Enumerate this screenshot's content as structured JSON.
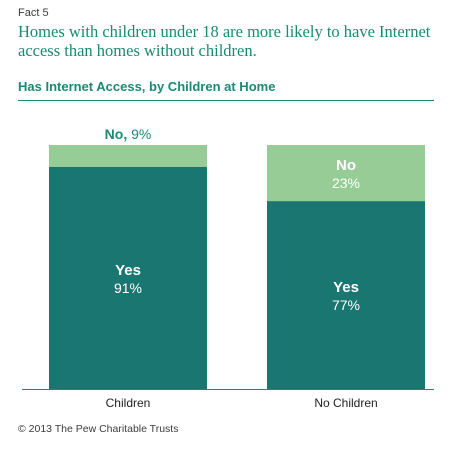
{
  "header": {
    "fact_label": "Fact 5",
    "headline": "Homes with children under 18 are more likely to have Internet access than homes without children."
  },
  "colors": {
    "yes": "#1a7670",
    "no": "#97cc97",
    "accent": "#1a8a72",
    "text_dark": "#222222"
  },
  "chart_data": {
    "type": "bar",
    "stacked": true,
    "title": "Has Internet Access, by Children at Home",
    "categories": [
      "Children",
      "No Children"
    ],
    "series": [
      {
        "name": "Yes",
        "values": [
          91,
          77
        ],
        "labels": [
          "91%",
          "77%"
        ]
      },
      {
        "name": "No",
        "values": [
          9,
          23
        ],
        "labels": [
          "9%",
          "23%"
        ]
      }
    ],
    "ylim": [
      0,
      100
    ],
    "grid": false
  },
  "footer": {
    "copyright": "© 2013 The Pew Charitable Trusts"
  }
}
